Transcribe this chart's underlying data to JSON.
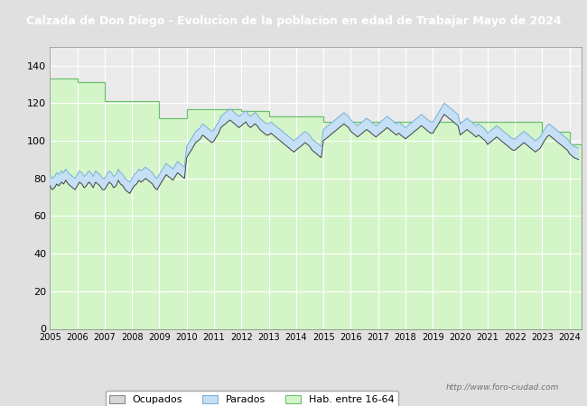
{
  "title": "Calzada de Don Diego - Evolucion de la poblacion en edad de Trabajar Mayo de 2024",
  "title_bg": "#3a6bbf",
  "title_color": "#ffffff",
  "xlim_start": 2005.0,
  "xlim_end": 2024.42,
  "ylim": [
    0,
    150
  ],
  "yticks": [
    0,
    20,
    40,
    60,
    80,
    100,
    120,
    140
  ],
  "xticks": [
    2005,
    2006,
    2007,
    2008,
    2009,
    2010,
    2011,
    2012,
    2013,
    2014,
    2015,
    2016,
    2017,
    2018,
    2019,
    2020,
    2021,
    2022,
    2023,
    2024
  ],
  "plot_bg": "#ebebeb",
  "grid_color": "#ffffff",
  "hab_color": "#d4f5c8",
  "hab_edge": "#6abf70",
  "parados_fill_color": "#c5dff5",
  "parados_line_color": "#7ab0d8",
  "ocupados_color": "#404040",
  "watermark": "http://www.foro-ciudad.com",
  "hab_steps": [
    [
      2005.0,
      133
    ],
    [
      2006.0,
      131
    ],
    [
      2006.5,
      131
    ],
    [
      2007.0,
      121
    ],
    [
      2008.0,
      121
    ],
    [
      2009.0,
      112
    ],
    [
      2009.5,
      112
    ],
    [
      2010.0,
      117
    ],
    [
      2011.0,
      117
    ],
    [
      2012.0,
      116
    ],
    [
      2013.0,
      113
    ],
    [
      2015.0,
      110
    ],
    [
      2023.0,
      105
    ],
    [
      2024.0,
      98
    ],
    [
      2024.42,
      98
    ]
  ],
  "series_x": [
    2005.0,
    2005.08,
    2005.17,
    2005.25,
    2005.33,
    2005.42,
    2005.5,
    2005.58,
    2005.67,
    2005.75,
    2005.83,
    2005.92,
    2006.0,
    2006.08,
    2006.17,
    2006.25,
    2006.33,
    2006.42,
    2006.5,
    2006.58,
    2006.67,
    2006.75,
    2006.83,
    2006.92,
    2007.0,
    2007.08,
    2007.17,
    2007.25,
    2007.33,
    2007.42,
    2007.5,
    2007.58,
    2007.67,
    2007.75,
    2007.83,
    2007.92,
    2008.0,
    2008.08,
    2008.17,
    2008.25,
    2008.33,
    2008.42,
    2008.5,
    2008.58,
    2008.67,
    2008.75,
    2008.83,
    2008.92,
    2009.0,
    2009.08,
    2009.17,
    2009.25,
    2009.33,
    2009.42,
    2009.5,
    2009.58,
    2009.67,
    2009.75,
    2009.83,
    2009.92,
    2010.0,
    2010.08,
    2010.17,
    2010.25,
    2010.33,
    2010.42,
    2010.5,
    2010.58,
    2010.67,
    2010.75,
    2010.83,
    2010.92,
    2011.0,
    2011.08,
    2011.17,
    2011.25,
    2011.33,
    2011.42,
    2011.5,
    2011.58,
    2011.67,
    2011.75,
    2011.83,
    2011.92,
    2012.0,
    2012.08,
    2012.17,
    2012.25,
    2012.33,
    2012.42,
    2012.5,
    2012.58,
    2012.67,
    2012.75,
    2012.83,
    2012.92,
    2013.0,
    2013.08,
    2013.17,
    2013.25,
    2013.33,
    2013.42,
    2013.5,
    2013.58,
    2013.67,
    2013.75,
    2013.83,
    2013.92,
    2014.0,
    2014.08,
    2014.17,
    2014.25,
    2014.33,
    2014.42,
    2014.5,
    2014.58,
    2014.67,
    2014.75,
    2014.83,
    2014.92,
    2015.0,
    2015.08,
    2015.17,
    2015.25,
    2015.33,
    2015.42,
    2015.5,
    2015.58,
    2015.67,
    2015.75,
    2015.83,
    2015.92,
    2016.0,
    2016.08,
    2016.17,
    2016.25,
    2016.33,
    2016.42,
    2016.5,
    2016.58,
    2016.67,
    2016.75,
    2016.83,
    2016.92,
    2017.0,
    2017.08,
    2017.17,
    2017.25,
    2017.33,
    2017.42,
    2017.5,
    2017.58,
    2017.67,
    2017.75,
    2017.83,
    2017.92,
    2018.0,
    2018.08,
    2018.17,
    2018.25,
    2018.33,
    2018.42,
    2018.5,
    2018.58,
    2018.67,
    2018.75,
    2018.83,
    2018.92,
    2019.0,
    2019.08,
    2019.17,
    2019.25,
    2019.33,
    2019.42,
    2019.5,
    2019.58,
    2019.67,
    2019.75,
    2019.83,
    2019.92,
    2020.0,
    2020.08,
    2020.17,
    2020.25,
    2020.33,
    2020.42,
    2020.5,
    2020.58,
    2020.67,
    2020.75,
    2020.83,
    2020.92,
    2021.0,
    2021.08,
    2021.17,
    2021.25,
    2021.33,
    2021.42,
    2021.5,
    2021.58,
    2021.67,
    2021.75,
    2021.83,
    2021.92,
    2022.0,
    2022.08,
    2022.17,
    2022.25,
    2022.33,
    2022.42,
    2022.5,
    2022.58,
    2022.67,
    2022.75,
    2022.83,
    2022.92,
    2023.0,
    2023.08,
    2023.17,
    2023.25,
    2023.33,
    2023.42,
    2023.5,
    2023.58,
    2023.67,
    2023.75,
    2023.83,
    2023.92,
    2024.0,
    2024.08,
    2024.17,
    2024.33
  ],
  "parados_y": [
    82,
    80,
    81,
    83,
    82,
    84,
    83,
    85,
    83,
    82,
    81,
    80,
    82,
    84,
    83,
    81,
    82,
    84,
    83,
    81,
    84,
    83,
    82,
    80,
    80,
    82,
    84,
    83,
    81,
    82,
    85,
    83,
    82,
    80,
    79,
    78,
    80,
    82,
    83,
    85,
    84,
    85,
    86,
    85,
    84,
    83,
    81,
    80,
    82,
    84,
    86,
    88,
    87,
    86,
    85,
    87,
    89,
    88,
    87,
    86,
    97,
    99,
    101,
    103,
    105,
    106,
    107,
    109,
    108,
    107,
    106,
    105,
    106,
    108,
    110,
    113,
    114,
    115,
    116,
    117,
    116,
    115,
    114,
    113,
    114,
    115,
    116,
    114,
    113,
    114,
    115,
    114,
    112,
    111,
    110,
    109,
    109,
    110,
    109,
    108,
    107,
    106,
    105,
    104,
    103,
    102,
    101,
    100,
    101,
    102,
    103,
    104,
    105,
    104,
    103,
    101,
    100,
    99,
    98,
    97,
    106,
    107,
    108,
    109,
    110,
    111,
    112,
    113,
    114,
    115,
    114,
    113,
    111,
    110,
    109,
    108,
    109,
    110,
    111,
    112,
    111,
    110,
    109,
    108,
    109,
    110,
    111,
    112,
    113,
    112,
    111,
    110,
    109,
    110,
    109,
    108,
    107,
    108,
    109,
    110,
    111,
    112,
    113,
    114,
    113,
    112,
    111,
    110,
    110,
    112,
    114,
    116,
    118,
    120,
    119,
    118,
    117,
    116,
    115,
    114,
    109,
    110,
    111,
    112,
    111,
    110,
    109,
    108,
    109,
    108,
    107,
    106,
    104,
    105,
    106,
    107,
    108,
    107,
    106,
    105,
    104,
    103,
    102,
    101,
    101,
    102,
    103,
    104,
    105,
    104,
    103,
    102,
    101,
    100,
    101,
    102,
    104,
    106,
    108,
    109,
    108,
    107,
    106,
    105,
    104,
    103,
    102,
    101,
    99,
    98,
    97,
    96
  ],
  "ocupados_y": [
    76,
    74,
    75,
    77,
    76,
    78,
    77,
    79,
    77,
    76,
    75,
    74,
    76,
    78,
    77,
    75,
    76,
    78,
    77,
    75,
    78,
    77,
    76,
    74,
    74,
    76,
    78,
    77,
    75,
    76,
    79,
    77,
    76,
    74,
    73,
    72,
    74,
    76,
    77,
    79,
    78,
    79,
    80,
    79,
    78,
    77,
    75,
    74,
    76,
    78,
    80,
    82,
    81,
    80,
    79,
    81,
    83,
    82,
    81,
    80,
    91,
    93,
    95,
    97,
    99,
    100,
    101,
    103,
    102,
    101,
    100,
    99,
    100,
    102,
    104,
    107,
    108,
    109,
    110,
    111,
    110,
    109,
    108,
    107,
    108,
    109,
    110,
    108,
    107,
    108,
    109,
    108,
    106,
    105,
    104,
    103,
    103,
    104,
    103,
    102,
    101,
    100,
    99,
    98,
    97,
    96,
    95,
    94,
    95,
    96,
    97,
    98,
    99,
    98,
    97,
    95,
    94,
    93,
    92,
    91,
    100,
    101,
    102,
    103,
    104,
    105,
    106,
    107,
    108,
    109,
    108,
    107,
    105,
    104,
    103,
    102,
    103,
    104,
    105,
    106,
    105,
    104,
    103,
    102,
    103,
    104,
    105,
    106,
    107,
    106,
    105,
    104,
    103,
    104,
    103,
    102,
    101,
    102,
    103,
    104,
    105,
    106,
    107,
    108,
    107,
    106,
    105,
    104,
    104,
    106,
    108,
    110,
    112,
    114,
    113,
    112,
    111,
    110,
    109,
    108,
    103,
    104,
    105,
    106,
    105,
    104,
    103,
    102,
    103,
    102,
    101,
    100,
    98,
    99,
    100,
    101,
    102,
    101,
    100,
    99,
    98,
    97,
    96,
    95,
    95,
    96,
    97,
    98,
    99,
    98,
    97,
    96,
    95,
    94,
    95,
    96,
    98,
    100,
    102,
    103,
    102,
    101,
    100,
    99,
    98,
    97,
    96,
    95,
    93,
    92,
    91,
    90
  ]
}
